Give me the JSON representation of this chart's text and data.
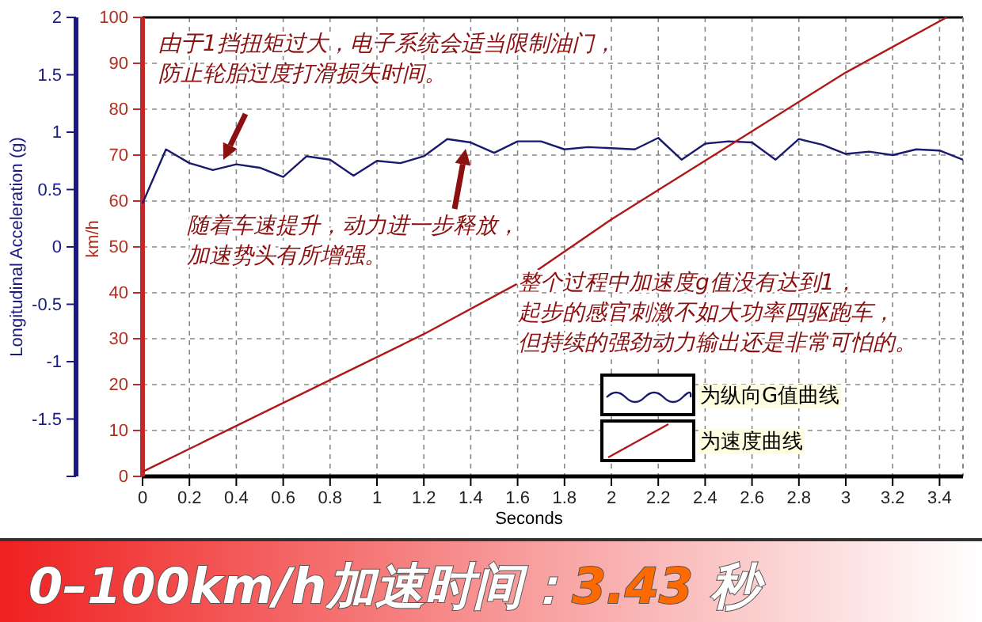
{
  "chart_data": {
    "type": "line",
    "title": "0–100km/h加速时间：3.43 秒",
    "xlabel": "Seconds",
    "ylabel": "km/h",
    "y2label": "Longitudinal Acceleration (g)",
    "xlim": [
      0,
      3.5
    ],
    "xticks": [
      0,
      0.2,
      0.4,
      0.6,
      0.8,
      1,
      1.2,
      1.4,
      1.6,
      1.8,
      2,
      2.2,
      2.4,
      2.6,
      2.8,
      3,
      3.2,
      3.4
    ],
    "ylim": [
      0,
      100
    ],
    "yticks": [
      0,
      10,
      20,
      30,
      40,
      50,
      60,
      70,
      80,
      90,
      100
    ],
    "y2lim": [
      -2,
      2
    ],
    "y2ticks": [
      {
        "value": -2,
        "label": null
      },
      -1.5,
      -1,
      -0.5,
      0,
      0.5,
      1,
      1.5,
      2
    ],
    "grid": true,
    "legend": "bottom right",
    "series": [
      {
        "name": "为纵向G值曲线",
        "color": "#1a1a6e",
        "axis": "y2",
        "x": [
          0,
          0.1,
          0.2,
          0.3,
          0.4,
          0.5,
          0.6,
          0.7,
          0.8,
          0.9,
          1,
          1.1,
          1.2,
          1.3,
          1.4,
          1.5,
          1.6,
          1.7,
          1.8,
          1.9,
          2,
          2.1,
          2.2,
          2.3,
          2.4,
          2.5,
          2.6,
          2.7,
          2.8,
          2.9,
          3,
          3.1,
          3.2,
          3.3,
          3.4,
          3.5
        ],
        "values": [
          0.38,
          0.85,
          0.73,
          0.67,
          0.72,
          0.69,
          0.61,
          0.79,
          0.76,
          0.62,
          0.75,
          0.73,
          0.79,
          0.94,
          0.91,
          0.82,
          0.92,
          0.92,
          0.85,
          0.87,
          0.86,
          0.85,
          0.95,
          0.76,
          0.9,
          0.92,
          0.91,
          0.76,
          0.94,
          0.89,
          0.81,
          0.83,
          0.8,
          0.85,
          0.84,
          0.76
        ]
      },
      {
        "name": "为速度曲线",
        "color": "#b01818",
        "x": [
          0,
          0.6,
          1.2,
          1.6,
          2,
          2.5,
          3,
          3.43
        ],
        "values": [
          1,
          16,
          31,
          42,
          56,
          72,
          88,
          100
        ]
      }
    ],
    "annotations": [
      "由于1挡扭矩过大，电子系统会适当限制油门，",
      "防止轮胎过度打滑损失时间。",
      "随着车速提升，动力进一步释放，",
      "加速势头有所增强。",
      "整个过程中加速度g值没有达到1，",
      "起步的感官刺激不如大功率四驱跑车，",
      "但持续的强劲动力输出还是非常可怕的。"
    ]
  }
}
